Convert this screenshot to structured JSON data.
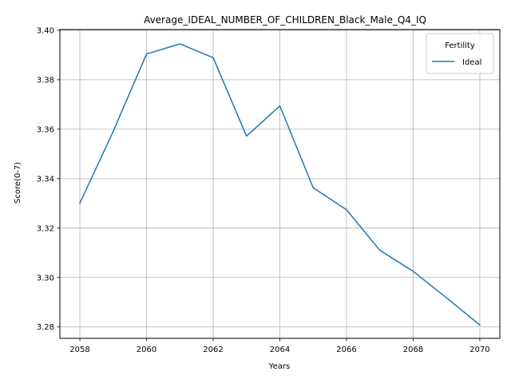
{
  "chart_data": {
    "type": "line",
    "title": "Average_IDEAL_NUMBER_OF_CHILDREN_Black_Male_Q4_IQ",
    "xlabel": "Years",
    "ylabel": "Score(0-7)",
    "xlim": [
      2057.4,
      2070.6
    ],
    "ylim": [
      3.2754,
      3.4003
    ],
    "xticks": [
      2058,
      2060,
      2062,
      2064,
      2066,
      2068,
      2070
    ],
    "yticks": [
      3.28,
      3.3,
      3.32,
      3.34,
      3.36,
      3.38,
      3.4
    ],
    "xtick_labels": [
      "2058",
      "2060",
      "2062",
      "2064",
      "2066",
      "2068",
      "2070"
    ],
    "ytick_labels": [
      "3.28",
      "3.30",
      "3.32",
      "3.34",
      "3.36",
      "3.38",
      "3.40"
    ],
    "grid": true,
    "legend": {
      "title": "Fertility",
      "placement": "top-right"
    },
    "series": [
      {
        "name": "Ideal",
        "color": "#1f77b4",
        "x": [
          2058,
          2059,
          2060,
          2061,
          2062,
          2063,
          2064,
          2065,
          2066,
          2067,
          2068,
          2069,
          2070
        ],
        "y": [
          3.3301,
          3.3591,
          3.3904,
          3.3945,
          3.3889,
          3.3572,
          3.3694,
          3.3363,
          3.3274,
          3.311,
          3.3025,
          3.2918,
          3.2808
        ]
      }
    ]
  }
}
